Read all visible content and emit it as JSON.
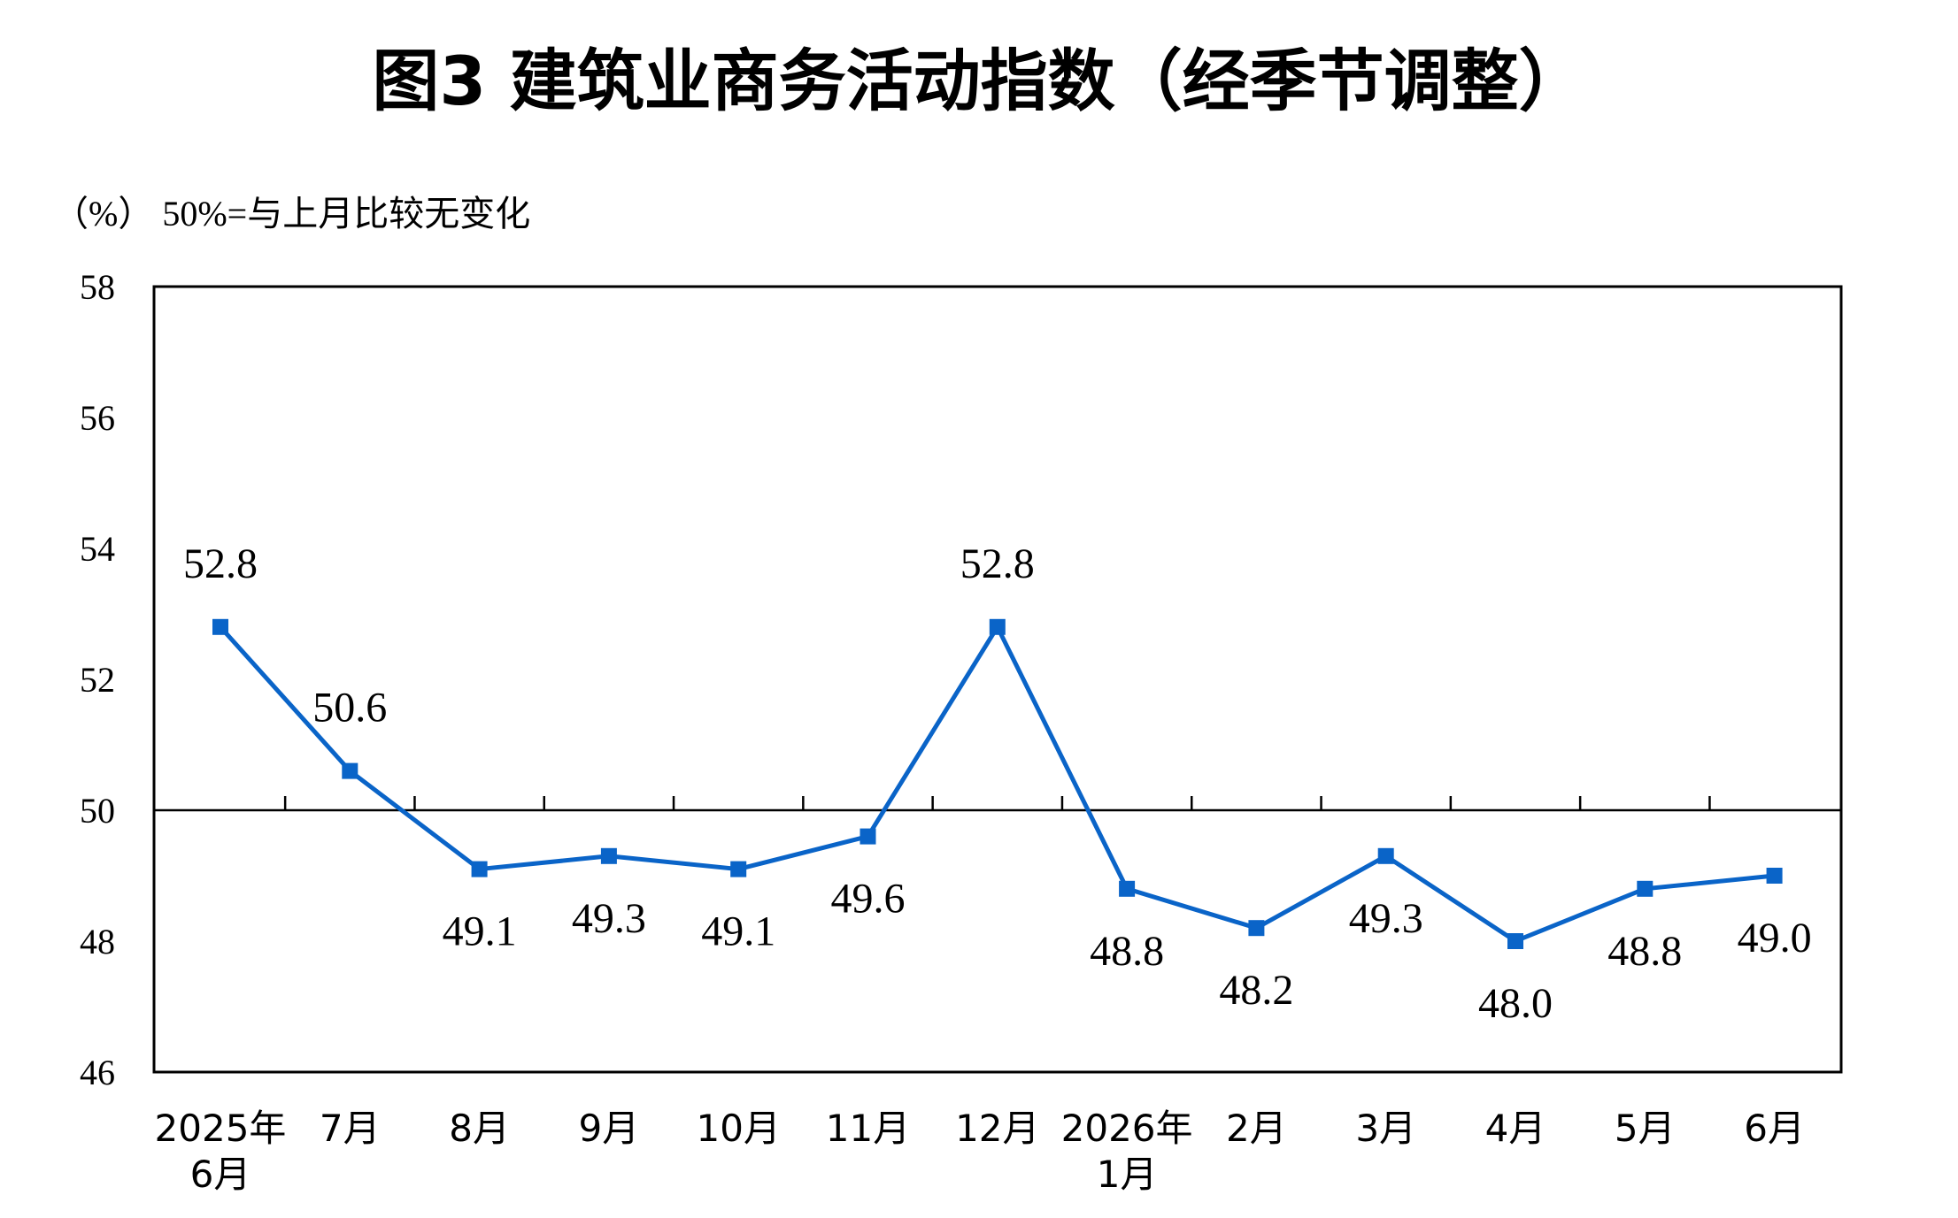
{
  "chart_data": {
    "type": "line",
    "title": "图3  建筑业商务活动指数（经季节调整）",
    "unit_note": "（%） 50%=与上月比较无变化",
    "x_labels": [
      [
        "2025年",
        "6月"
      ],
      [
        "7月"
      ],
      [
        "8月"
      ],
      [
        "9月"
      ],
      [
        "10月"
      ],
      [
        "11月"
      ],
      [
        "12月"
      ],
      [
        "2026年",
        "1月"
      ],
      [
        "2月"
      ],
      [
        "3月"
      ],
      [
        "4月"
      ],
      [
        "5月"
      ],
      [
        "6月"
      ]
    ],
    "values": [
      52.8,
      50.6,
      49.1,
      49.3,
      49.1,
      49.6,
      52.8,
      48.8,
      48.2,
      49.3,
      48.0,
      48.8,
      49.0
    ],
    "value_labels": [
      "52.8",
      "50.6",
      "49.1",
      "49.3",
      "49.1",
      "49.6",
      "52.8",
      "48.8",
      "48.2",
      "49.3",
      "48.0",
      "48.8",
      "49.0"
    ],
    "label_above": [
      true,
      true,
      false,
      false,
      false,
      false,
      true,
      false,
      false,
      false,
      false,
      false,
      false
    ],
    "ylim": [
      46,
      58
    ],
    "y_ticks": [
      46,
      48,
      50,
      52,
      54,
      56,
      58
    ],
    "reference_line": 50,
    "grid": false,
    "colors": {
      "series": "#0a64c8",
      "axis": "#000000",
      "text": "#000000"
    }
  }
}
